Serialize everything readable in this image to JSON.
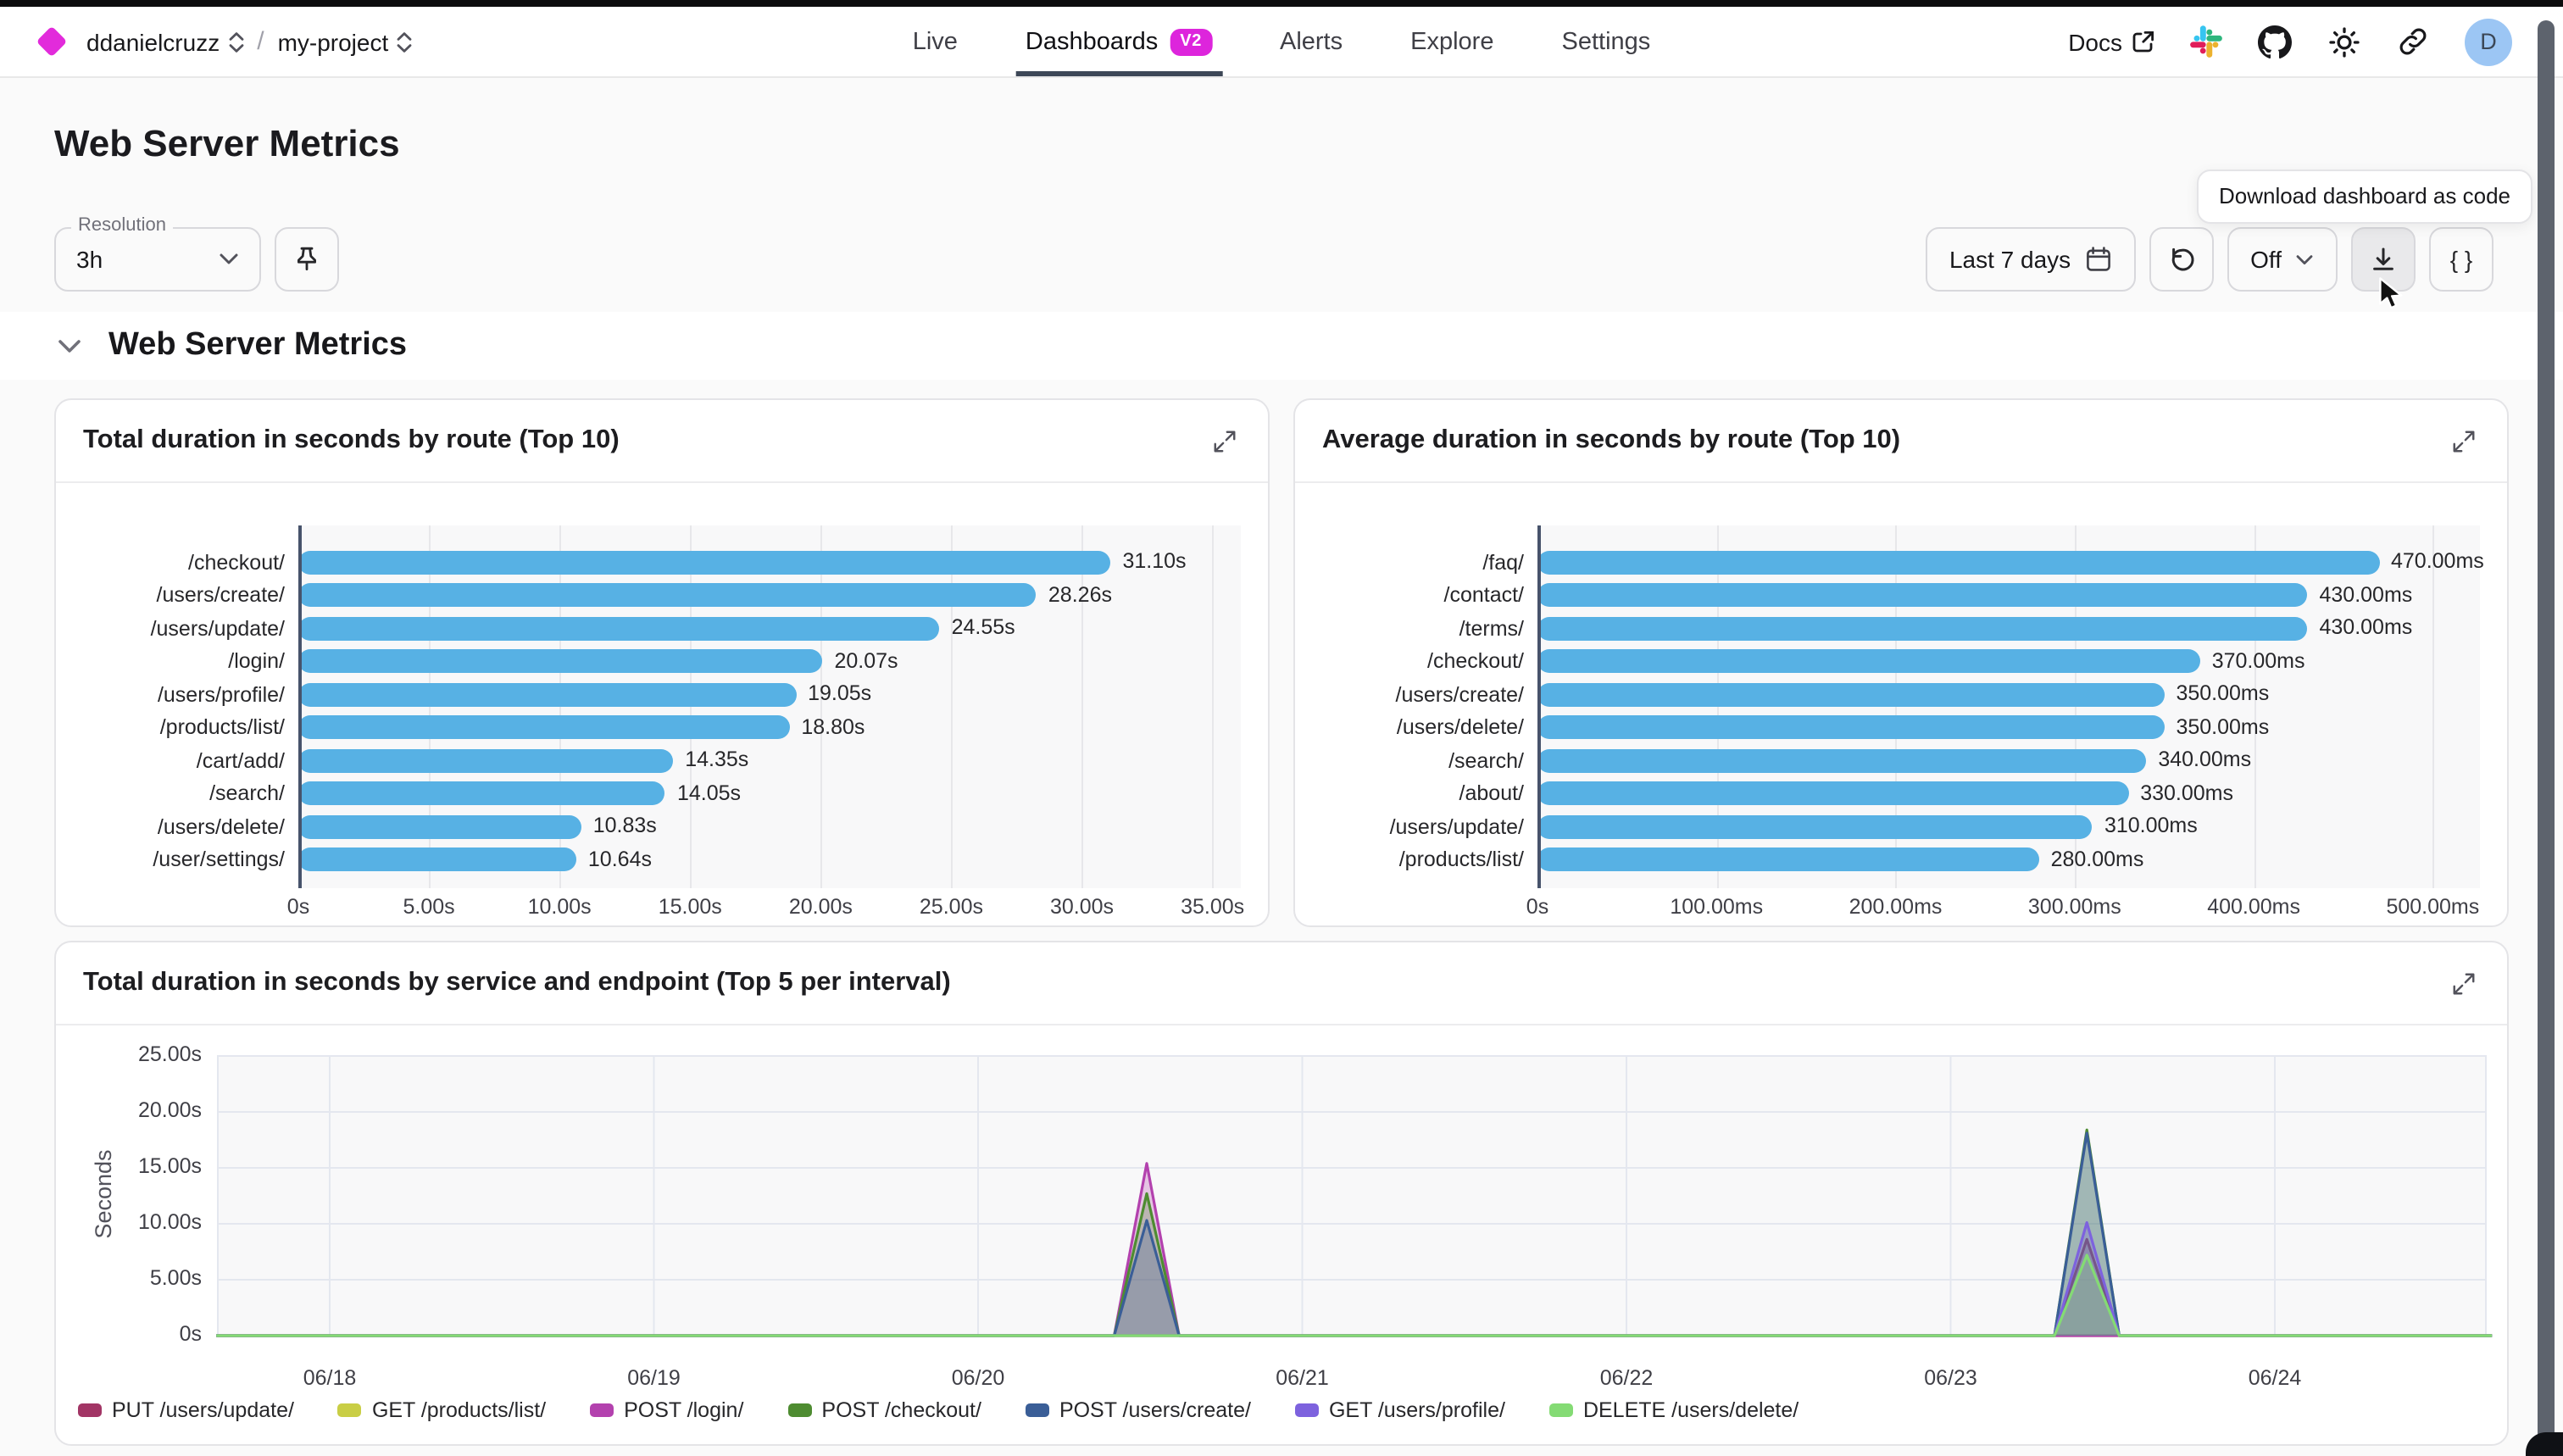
{
  "nav": {
    "org": "ddanielcruzz",
    "project": "my-project",
    "tabs": [
      {
        "label": "Live"
      },
      {
        "label": "Dashboards",
        "badge": "V2",
        "active": true
      },
      {
        "label": "Alerts"
      },
      {
        "label": "Explore"
      },
      {
        "label": "Settings"
      }
    ],
    "docs_label": "Docs",
    "avatar_initial": "D"
  },
  "page": {
    "title": "Web Server Metrics",
    "resolution_label": "Resolution",
    "resolution_value": "3h",
    "time_range_label": "Last 7 days",
    "auto_refresh_label": "Off",
    "braces_label": "{ }",
    "tooltip": "Download dashboard as code"
  },
  "section": {
    "title": "Web Server Metrics"
  },
  "colors": {
    "accent": "#DD25DC",
    "bar_blue": "#57B1E4",
    "avatar_bg": "#9CC6F4",
    "scrollbar": "#5D636D"
  },
  "chart_data": [
    {
      "type": "bar",
      "title": "Total duration in seconds by route (Top 10)",
      "orientation": "horizontal",
      "unit": "s",
      "categories": [
        "/checkout/",
        "/users/create/",
        "/users/update/",
        "/login/",
        "/users/profile/",
        "/products/list/",
        "/cart/add/",
        "/search/",
        "/users/delete/",
        "/user/settings/"
      ],
      "values": [
        31.1,
        28.26,
        24.55,
        20.07,
        19.05,
        18.8,
        14.35,
        14.05,
        10.83,
        10.64
      ],
      "value_labels": [
        "31.10s",
        "28.26s",
        "24.55s",
        "20.07s",
        "19.05s",
        "18.80s",
        "14.35s",
        "14.05s",
        "10.83s",
        "10.64s"
      ],
      "x_ticks": [
        "0s",
        "5.00s",
        "10.00s",
        "15.00s",
        "20.00s",
        "25.00s",
        "30.00s",
        "35.00s"
      ],
      "tick_max": 35,
      "bar_color": "#57B1E4",
      "grid": true
    },
    {
      "type": "bar",
      "title": "Average duration in seconds by route (Top 10)",
      "orientation": "horizontal",
      "unit": "ms",
      "categories": [
        "/faq/",
        "/contact/",
        "/terms/",
        "/checkout/",
        "/users/create/",
        "/users/delete/",
        "/search/",
        "/about/",
        "/users/update/",
        "/products/list/"
      ],
      "values": [
        470,
        430,
        430,
        370,
        350,
        350,
        340,
        330,
        310,
        280
      ],
      "value_labels": [
        "470.00ms",
        "430.00ms",
        "430.00ms",
        "370.00ms",
        "350.00ms",
        "350.00ms",
        "340.00ms",
        "330.00ms",
        "310.00ms",
        "280.00ms"
      ],
      "x_ticks": [
        "0s",
        "100.00ms",
        "200.00ms",
        "300.00ms",
        "400.00ms",
        "500.00ms"
      ],
      "tick_max": 500,
      "bar_color": "#57B1E4",
      "grid": true
    },
    {
      "type": "area",
      "title": "Total duration in seconds by service and endpoint (Top 5 per interval)",
      "ylabel": "Seconds",
      "y_tick_labels": [
        "25.00s",
        "20.00s",
        "15.00s",
        "10.00s",
        "5.00s",
        "0s"
      ],
      "y_tick_values": [
        25,
        20,
        15,
        10,
        5,
        0
      ],
      "y_max": 25,
      "x_ticks": [
        "06/18",
        "06/19",
        "06/20",
        "06/21",
        "06/22",
        "06/23",
        "06/24"
      ],
      "x_domain_days": [
        -0.35,
        6.67
      ],
      "legend_position": "bottom",
      "series": [
        {
          "name": "PUT /users/update/",
          "color": "#A23565",
          "points": [
            [
              -0.35,
              0
            ],
            [
              5.32,
              0
            ],
            [
              5.42,
              8.6
            ],
            [
              5.52,
              0
            ],
            [
              6.67,
              0
            ]
          ]
        },
        {
          "name": "GET /products/list/",
          "color": "#C9CE45",
          "points": [
            [
              -0.35,
              0
            ],
            [
              6.67,
              0
            ]
          ]
        },
        {
          "name": "POST /login/",
          "color": "#B341AE",
          "points": [
            [
              -0.35,
              0
            ],
            [
              2.42,
              0
            ],
            [
              2.52,
              15.4
            ],
            [
              2.62,
              0
            ],
            [
              6.67,
              0
            ]
          ]
        },
        {
          "name": "POST /checkout/",
          "color": "#4E8C31",
          "points": [
            [
              -0.35,
              0
            ],
            [
              2.42,
              0
            ],
            [
              2.52,
              12.7
            ],
            [
              2.62,
              0
            ],
            [
              5.32,
              0
            ],
            [
              5.42,
              18.4
            ],
            [
              5.52,
              0
            ],
            [
              6.67,
              0
            ]
          ]
        },
        {
          "name": "POST /users/create/",
          "color": "#3A5E97",
          "points": [
            [
              -0.35,
              0
            ],
            [
              2.42,
              0
            ],
            [
              2.52,
              10.3
            ],
            [
              2.62,
              0
            ],
            [
              5.32,
              0
            ],
            [
              5.42,
              18.1
            ],
            [
              5.52,
              0
            ],
            [
              6.67,
              0
            ]
          ]
        },
        {
          "name": "GET /users/profile/",
          "color": "#7D62DE",
          "points": [
            [
              -0.35,
              0
            ],
            [
              5.32,
              0
            ],
            [
              5.42,
              10.1
            ],
            [
              5.52,
              0
            ],
            [
              6.67,
              0
            ]
          ]
        },
        {
          "name": "DELETE /users/delete/",
          "color": "#84DB74",
          "points": [
            [
              -0.35,
              0
            ],
            [
              5.32,
              0
            ],
            [
              5.42,
              7.2
            ],
            [
              5.52,
              0
            ],
            [
              6.67,
              0
            ]
          ]
        }
      ]
    }
  ]
}
